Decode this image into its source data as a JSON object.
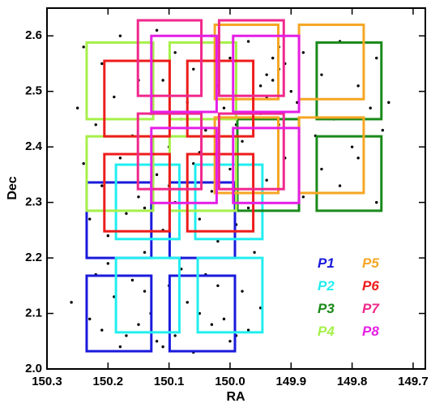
{
  "chart_data": {
    "type": "scatter",
    "x_label": "RA",
    "y_label": "Dec",
    "xlim": [
      150.3,
      149.68
    ],
    "ylim": [
      2.0,
      2.65
    ],
    "xticks": [
      150.3,
      150.2,
      150.1,
      {
        "value": 150.0,
        "label": "150.0"
      },
      149.9,
      149.8,
      149.7
    ],
    "yticks": [
      {
        "value": 2.0,
        "label": "2.0"
      },
      2.1,
      2.2,
      2.3,
      2.4,
      2.5,
      2.6
    ],
    "point_color": "#000000",
    "x": [
      150.24,
      150.21,
      150.18,
      150.15,
      150.12,
      150.09,
      150.06,
      150.03,
      150.0,
      149.97,
      149.94,
      149.93,
      149.92,
      149.95,
      149.91,
      149.9,
      149.88,
      149.85,
      149.82,
      149.79,
      149.76,
      149.74,
      150.25,
      150.22,
      150.19,
      150.16,
      150.13,
      150.1,
      150.07,
      150.04,
      150.01,
      149.98,
      149.95,
      149.92,
      149.89,
      149.86,
      149.83,
      149.8,
      149.77,
      149.75,
      150.24,
      150.21,
      150.18,
      150.15,
      150.12,
      150.09,
      150.06,
      150.03,
      150.0,
      149.97,
      149.94,
      149.91,
      149.88,
      149.85,
      149.82,
      149.79,
      149.76,
      150.23,
      150.2,
      150.17,
      150.14,
      150.11,
      150.08,
      150.05,
      150.02,
      149.99,
      149.96,
      150.22,
      150.19,
      150.16,
      150.13,
      150.1,
      150.07,
      150.04,
      150.01,
      149.98,
      149.95,
      150.21,
      150.18,
      150.15,
      150.12,
      150.09,
      150.06,
      150.03,
      150.0,
      149.97,
      150.11,
      150.08,
      150.05,
      150.02,
      149.99,
      149.93,
      149.94,
      149.92,
      150.14,
      150.1,
      150.26,
      150.23,
      150.2,
      150.17,
      150.14,
      150.11,
      150.08,
      150.05,
      150.02,
      149.99
    ],
    "values": [
      2.58,
      2.55,
      2.6,
      2.52,
      2.61,
      2.57,
      2.54,
      2.6,
      2.56,
      2.59,
      2.53,
      2.52,
      2.54,
      2.51,
      2.55,
      2.5,
      2.57,
      2.53,
      2.59,
      2.51,
      2.56,
      2.48,
      2.47,
      2.44,
      2.49,
      2.42,
      2.46,
      2.4,
      2.48,
      2.43,
      2.47,
      2.41,
      2.46,
      2.44,
      2.48,
      2.42,
      2.45,
      2.4,
      2.47,
      2.43,
      2.37,
      2.33,
      2.38,
      2.31,
      2.35,
      2.3,
      2.37,
      2.32,
      2.36,
      2.29,
      2.34,
      2.38,
      2.31,
      2.36,
      2.33,
      2.38,
      2.3,
      2.27,
      2.24,
      2.28,
      2.21,
      2.25,
      2.2,
      2.27,
      2.23,
      2.26,
      2.21,
      2.17,
      2.13,
      2.16,
      2.1,
      2.15,
      2.12,
      2.17,
      2.09,
      2.14,
      2.11,
      2.07,
      2.04,
      2.08,
      2.05,
      2.06,
      2.03,
      2.08,
      2.05,
      2.07,
      2.52,
      2.45,
      2.39,
      2.51,
      2.44,
      2.56,
      2.49,
      2.58,
      2.29,
      2.33,
      2.12,
      2.09,
      2.19,
      2.06,
      2.14,
      2.04,
      2.18,
      2.1,
      2.15,
      2.06
    ],
    "fields": [
      {
        "name": "P1",
        "color": "#1a1adc",
        "boxes": [
          {
            "ra": [
              150.235,
              150.129
            ],
            "dec": [
              2.2,
              2.336
            ]
          },
          {
            "ra": [
              150.099,
              149.992
            ],
            "dec": [
              2.2,
              2.336
            ]
          },
          {
            "ra": [
              150.235,
              150.129
            ],
            "dec": [
              2.032,
              2.168
            ]
          },
          {
            "ra": [
              150.099,
              149.992
            ],
            "dec": [
              2.032,
              2.168
            ]
          }
        ]
      },
      {
        "name": "P2",
        "color": "#22eef0",
        "boxes": [
          {
            "ra": [
              150.187,
              150.083
            ],
            "dec": [
              2.234,
              2.368
            ]
          },
          {
            "ra": [
              150.057,
              149.947
            ],
            "dec": [
              2.234,
              2.368
            ]
          },
          {
            "ra": [
              150.187,
              150.083
            ],
            "dec": [
              2.066,
              2.2
            ]
          },
          {
            "ra": [
              150.053,
              149.947
            ],
            "dec": [
              2.066,
              2.2
            ]
          }
        ]
      },
      {
        "name": "P3",
        "color": "#1a8a1a",
        "boxes": [
          {
            "ra": [
              149.988,
              149.887
            ],
            "dec": [
              2.285,
              2.45
            ]
          },
          {
            "ra": [
              149.858,
              149.752
            ],
            "dec": [
              2.45,
              2.588
            ]
          },
          {
            "ra": [
              149.858,
              149.752
            ],
            "dec": [
              2.285,
              2.419
            ]
          }
        ]
      },
      {
        "name": "P4",
        "color": "#a6f04a",
        "boxes": [
          {
            "ra": [
              150.235,
              150.126
            ],
            "dec": [
              2.45,
              2.588
            ]
          },
          {
            "ra": [
              150.099,
              149.99
            ],
            "dec": [
              2.45,
              2.588
            ]
          },
          {
            "ra": [
              150.235,
              150.126
            ],
            "dec": [
              2.285,
              2.419
            ]
          },
          {
            "ra": [
              150.099,
              149.99
            ],
            "dec": [
              2.285,
              2.419
            ]
          }
        ]
      },
      {
        "name": "P5",
        "color": "#f5a623",
        "boxes": [
          {
            "ra": [
              150.025,
              149.921
            ],
            "dec": [
              2.486,
              2.62
            ]
          },
          {
            "ra": [
              149.887,
              149.781
            ],
            "dec": [
              2.486,
              2.62
            ]
          },
          {
            "ra": [
              150.025,
              149.921
            ],
            "dec": [
              2.317,
              2.453
            ]
          },
          {
            "ra": [
              149.887,
              149.781
            ],
            "dec": [
              2.317,
              2.453
            ]
          }
        ]
      },
      {
        "name": "P6",
        "color": "#ee1c1c",
        "boxes": [
          {
            "ra": [
              150.206,
              150.099
            ],
            "dec": [
              2.419,
              2.555
            ]
          },
          {
            "ra": [
              150.07,
              149.962
            ],
            "dec": [
              2.419,
              2.555
            ]
          },
          {
            "ra": [
              150.206,
              150.099
            ],
            "dec": [
              2.248,
              2.387
            ]
          },
          {
            "ra": [
              150.07,
              149.962
            ],
            "dec": [
              2.248,
              2.387
            ]
          }
        ]
      },
      {
        "name": "P7",
        "color": "#f0288c",
        "boxes": [
          {
            "ra": [
              150.151,
              150.047
            ],
            "dec": [
              2.492,
              2.628
            ]
          },
          {
            "ra": [
              150.018,
              149.912
            ],
            "dec": [
              2.492,
              2.628
            ]
          },
          {
            "ra": [
              150.151,
              150.047
            ],
            "dec": [
              2.324,
              2.46
            ]
          },
          {
            "ra": [
              150.018,
              149.912
            ],
            "dec": [
              2.324,
              2.46
            ]
          }
        ]
      },
      {
        "name": "P8",
        "color": "#e61ee6",
        "boxes": [
          {
            "ra": [
              150.129,
              150.022
            ],
            "dec": [
              2.463,
              2.6
            ]
          },
          {
            "ra": [
              149.995,
              149.887
            ],
            "dec": [
              2.463,
              2.6
            ]
          },
          {
            "ra": [
              150.129,
              150.022
            ],
            "dec": [
              2.299,
              2.434
            ]
          },
          {
            "ra": [
              149.995,
              149.887
            ],
            "dec": [
              2.299,
              2.434
            ]
          }
        ]
      }
    ]
  }
}
